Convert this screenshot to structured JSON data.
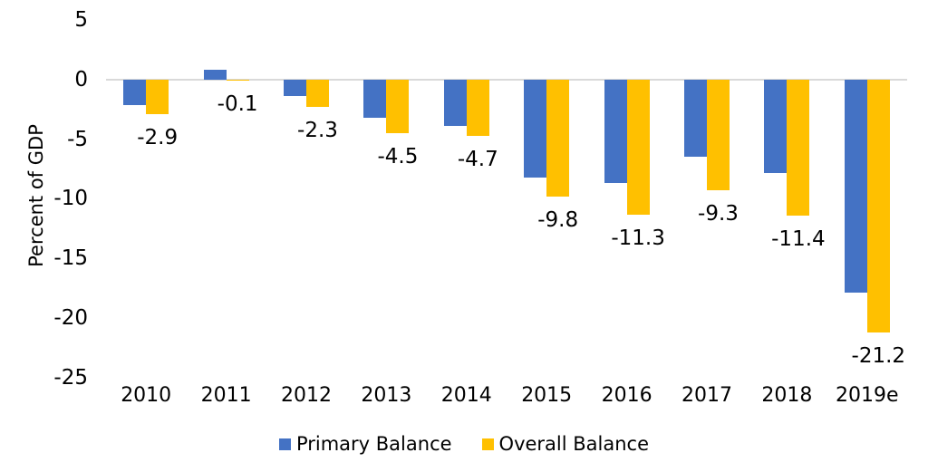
{
  "chart_data": {
    "type": "bar",
    "title": "",
    "ylabel": "Percent of GDP",
    "xlabel": "",
    "categories": [
      "2010",
      "2011",
      "2012",
      "2013",
      "2014",
      "2015",
      "2016",
      "2017",
      "2018",
      "2019e"
    ],
    "series": [
      {
        "name": "Primary Balance",
        "color": "#4472C4",
        "values": [
          -2.1,
          0.8,
          -1.4,
          -3.2,
          -3.9,
          -8.2,
          -8.7,
          -6.5,
          -7.8,
          -17.9
        ]
      },
      {
        "name": "Overall Balance",
        "color": "#FFC000",
        "values": [
          -2.9,
          -0.1,
          -2.3,
          -4.5,
          -4.7,
          -9.8,
          -11.3,
          -9.3,
          -11.4,
          -21.2
        ],
        "data_labels": [
          "-2.9",
          "-0.1",
          "-2.3",
          "-4.5",
          "-4.7",
          "-9.8",
          "-11.3",
          "-9.3",
          "-11.4",
          "-21.2"
        ]
      }
    ],
    "yticks": [
      5,
      0,
      -5,
      -10,
      -15,
      -20,
      -25
    ],
    "ylim": [
      -25,
      5
    ],
    "grid": "zero-line-only",
    "gridline_color": "#d9d9d9",
    "label_color": "#000000",
    "legend_position": "bottom"
  }
}
